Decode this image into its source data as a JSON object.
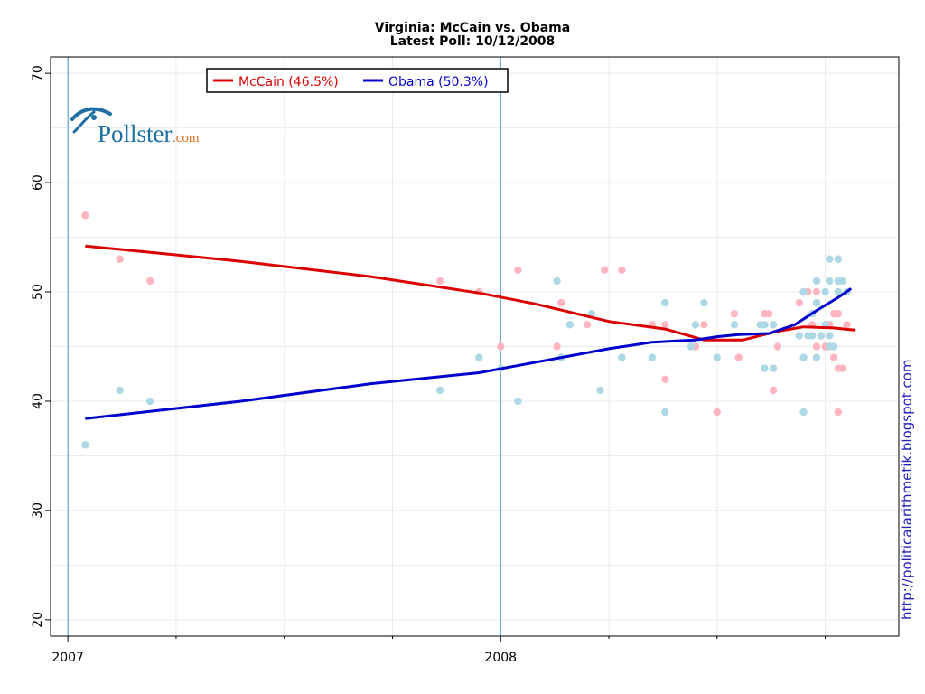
{
  "chart_data": {
    "type": "scatter",
    "title": "Virginia: McCain vs. Obama",
    "subtitle": "Latest Poll: 10/12/2008",
    "xlabel": "",
    "ylabel": "",
    "x_range": [
      2006.96,
      2008.92
    ],
    "ylim": [
      18.5,
      71.5
    ],
    "x_ticks": [
      {
        "value": 2007,
        "label": "2007"
      },
      {
        "value": 2008,
        "label": "2008"
      }
    ],
    "y_ticks": [
      20,
      30,
      40,
      50,
      60,
      70
    ],
    "x_minor_gridlines": [
      2007.25,
      2007.5,
      2007.75,
      2008.25,
      2008.5,
      2008.75
    ],
    "grid": true,
    "legend_position": "top-left",
    "series": [
      {
        "name": "McCain (46.5%)",
        "line_color": "#dd0000",
        "point_color": "#ffb6c1",
        "trend": [
          [
            2007.04,
            54.2
          ],
          [
            2007.4,
            52.8
          ],
          [
            2007.7,
            51.4
          ],
          [
            2007.95,
            49.9
          ],
          [
            2008.08,
            48.9
          ],
          [
            2008.25,
            47.3
          ],
          [
            2008.38,
            46.6
          ],
          [
            2008.47,
            45.6
          ],
          [
            2008.56,
            45.6
          ],
          [
            2008.64,
            46.4
          ],
          [
            2008.7,
            46.8
          ],
          [
            2008.77,
            46.7
          ],
          [
            2008.82,
            46.5
          ]
        ],
        "points": [
          [
            2007.04,
            57
          ],
          [
            2007.12,
            53
          ],
          [
            2007.19,
            51
          ],
          [
            2007.86,
            51
          ],
          [
            2007.95,
            50
          ],
          [
            2008.0,
            45
          ],
          [
            2008.04,
            52
          ],
          [
            2008.13,
            45
          ],
          [
            2008.14,
            49
          ],
          [
            2008.2,
            47
          ],
          [
            2008.24,
            52
          ],
          [
            2008.28,
            52
          ],
          [
            2008.35,
            47
          ],
          [
            2008.38,
            47
          ],
          [
            2008.38,
            42
          ],
          [
            2008.45,
            45
          ],
          [
            2008.47,
            47
          ],
          [
            2008.5,
            39
          ],
          [
            2008.54,
            48
          ],
          [
            2008.55,
            44
          ],
          [
            2008.61,
            48
          ],
          [
            2008.62,
            48
          ],
          [
            2008.63,
            41
          ],
          [
            2008.64,
            45
          ],
          [
            2008.69,
            49
          ],
          [
            2008.7,
            50
          ],
          [
            2008.71,
            50
          ],
          [
            2008.72,
            47
          ],
          [
            2008.73,
            50
          ],
          [
            2008.73,
            45
          ],
          [
            2008.74,
            46
          ],
          [
            2008.75,
            45
          ],
          [
            2008.76,
            47
          ],
          [
            2008.77,
            44
          ],
          [
            2008.77,
            48
          ],
          [
            2008.78,
            48
          ],
          [
            2008.78,
            39
          ],
          [
            2008.78,
            43
          ],
          [
            2008.79,
            43
          ],
          [
            2008.8,
            47
          ]
        ]
      },
      {
        "name": "Obama (50.3%)",
        "line_color": "#0000cc",
        "point_color": "#add8e6",
        "trend": [
          [
            2007.04,
            38.4
          ],
          [
            2007.4,
            40.0
          ],
          [
            2007.7,
            41.6
          ],
          [
            2007.95,
            42.6
          ],
          [
            2008.1,
            43.7
          ],
          [
            2008.25,
            44.8
          ],
          [
            2008.35,
            45.4
          ],
          [
            2008.45,
            45.6
          ],
          [
            2008.5,
            45.9
          ],
          [
            2008.55,
            46.1
          ],
          [
            2008.62,
            46.2
          ],
          [
            2008.68,
            47.0
          ],
          [
            2008.73,
            48.3
          ],
          [
            2008.78,
            49.5
          ],
          [
            2008.81,
            50.3
          ]
        ],
        "points": [
          [
            2007.04,
            36
          ],
          [
            2007.12,
            41
          ],
          [
            2007.19,
            40
          ],
          [
            2007.86,
            41
          ],
          [
            2007.95,
            44
          ],
          [
            2008.0,
            43
          ],
          [
            2008.04,
            40
          ],
          [
            2008.13,
            51
          ],
          [
            2008.14,
            44
          ],
          [
            2008.16,
            47
          ],
          [
            2008.21,
            48
          ],
          [
            2008.23,
            41
          ],
          [
            2008.28,
            44
          ],
          [
            2008.35,
            44
          ],
          [
            2008.38,
            49
          ],
          [
            2008.38,
            39
          ],
          [
            2008.44,
            45
          ],
          [
            2008.45,
            47
          ],
          [
            2008.47,
            49
          ],
          [
            2008.5,
            44
          ],
          [
            2008.54,
            47
          ],
          [
            2008.6,
            47
          ],
          [
            2008.61,
            47
          ],
          [
            2008.61,
            43
          ],
          [
            2008.63,
            47
          ],
          [
            2008.63,
            43
          ],
          [
            2008.69,
            46
          ],
          [
            2008.7,
            44
          ],
          [
            2008.7,
            39
          ],
          [
            2008.7,
            50
          ],
          [
            2008.71,
            46
          ],
          [
            2008.72,
            48
          ],
          [
            2008.72,
            46
          ],
          [
            2008.73,
            51
          ],
          [
            2008.73,
            49
          ],
          [
            2008.73,
            44
          ],
          [
            2008.74,
            46
          ],
          [
            2008.75,
            50
          ],
          [
            2008.75,
            47
          ],
          [
            2008.76,
            53
          ],
          [
            2008.76,
            51
          ],
          [
            2008.76,
            46
          ],
          [
            2008.76,
            45
          ],
          [
            2008.77,
            45
          ],
          [
            2008.78,
            53
          ],
          [
            2008.78,
            51
          ],
          [
            2008.78,
            50
          ],
          [
            2008.79,
            51
          ],
          [
            2008.8,
            50
          ]
        ]
      }
    ]
  },
  "watermark": {
    "logo": "Pollster",
    "logo_suffix": ".com",
    "logo_color": "#1d6fa5",
    "logo_suffix_color": "#e06d1d"
  },
  "source_url": "http://politicalarithmetik.blogspot.com"
}
